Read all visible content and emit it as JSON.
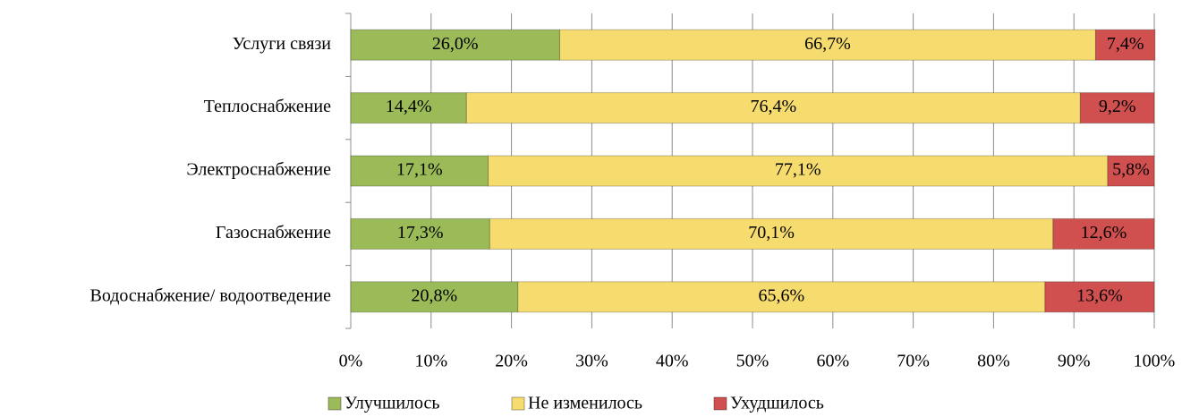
{
  "chart_data": {
    "type": "stacked_bar_horizontal",
    "categories": [
      "Услуги связи",
      "Теплоснабжение",
      "Электроснабжение",
      "Газоснабжение",
      "Водоснабжение/ водоотведение"
    ],
    "series": [
      {
        "name": "Улучшилось",
        "color": "#9bbb59",
        "values": [
          26.0,
          14.4,
          17.1,
          17.3,
          20.8
        ],
        "value_labels": [
          "26,0%",
          "14,4%",
          "17,1%",
          "17,3%",
          "20,8%"
        ]
      },
      {
        "name": "Не изменилось",
        "color": "#f6dc6e",
        "values": [
          66.7,
          76.4,
          77.1,
          70.1,
          65.6
        ],
        "value_labels": [
          "66,7%",
          "76,4%",
          "77,1%",
          "70,1%",
          "65,6%"
        ]
      },
      {
        "name": "Ухудшилось",
        "color": "#d05050",
        "values": [
          7.4,
          9.2,
          5.8,
          12.6,
          13.6
        ],
        "value_labels": [
          "7,4%",
          "9,2%",
          "5,8%",
          "12,6%",
          "13,6%"
        ]
      }
    ],
    "xlim": [
      0,
      100
    ],
    "xticks": [
      {
        "value": 0,
        "label": "0%"
      },
      {
        "value": 10,
        "label": "10%"
      },
      {
        "value": 20,
        "label": "20%"
      },
      {
        "value": 30,
        "label": "30%"
      },
      {
        "value": 40,
        "label": "40%"
      },
      {
        "value": 50,
        "label": "50%"
      },
      {
        "value": 60,
        "label": "60%"
      },
      {
        "value": 70,
        "label": "70%"
      },
      {
        "value": 80,
        "label": "80%"
      },
      {
        "value": 90,
        "label": "90%"
      },
      {
        "value": 100,
        "label": "100%"
      }
    ],
    "grid": true,
    "legend": "bottom"
  }
}
